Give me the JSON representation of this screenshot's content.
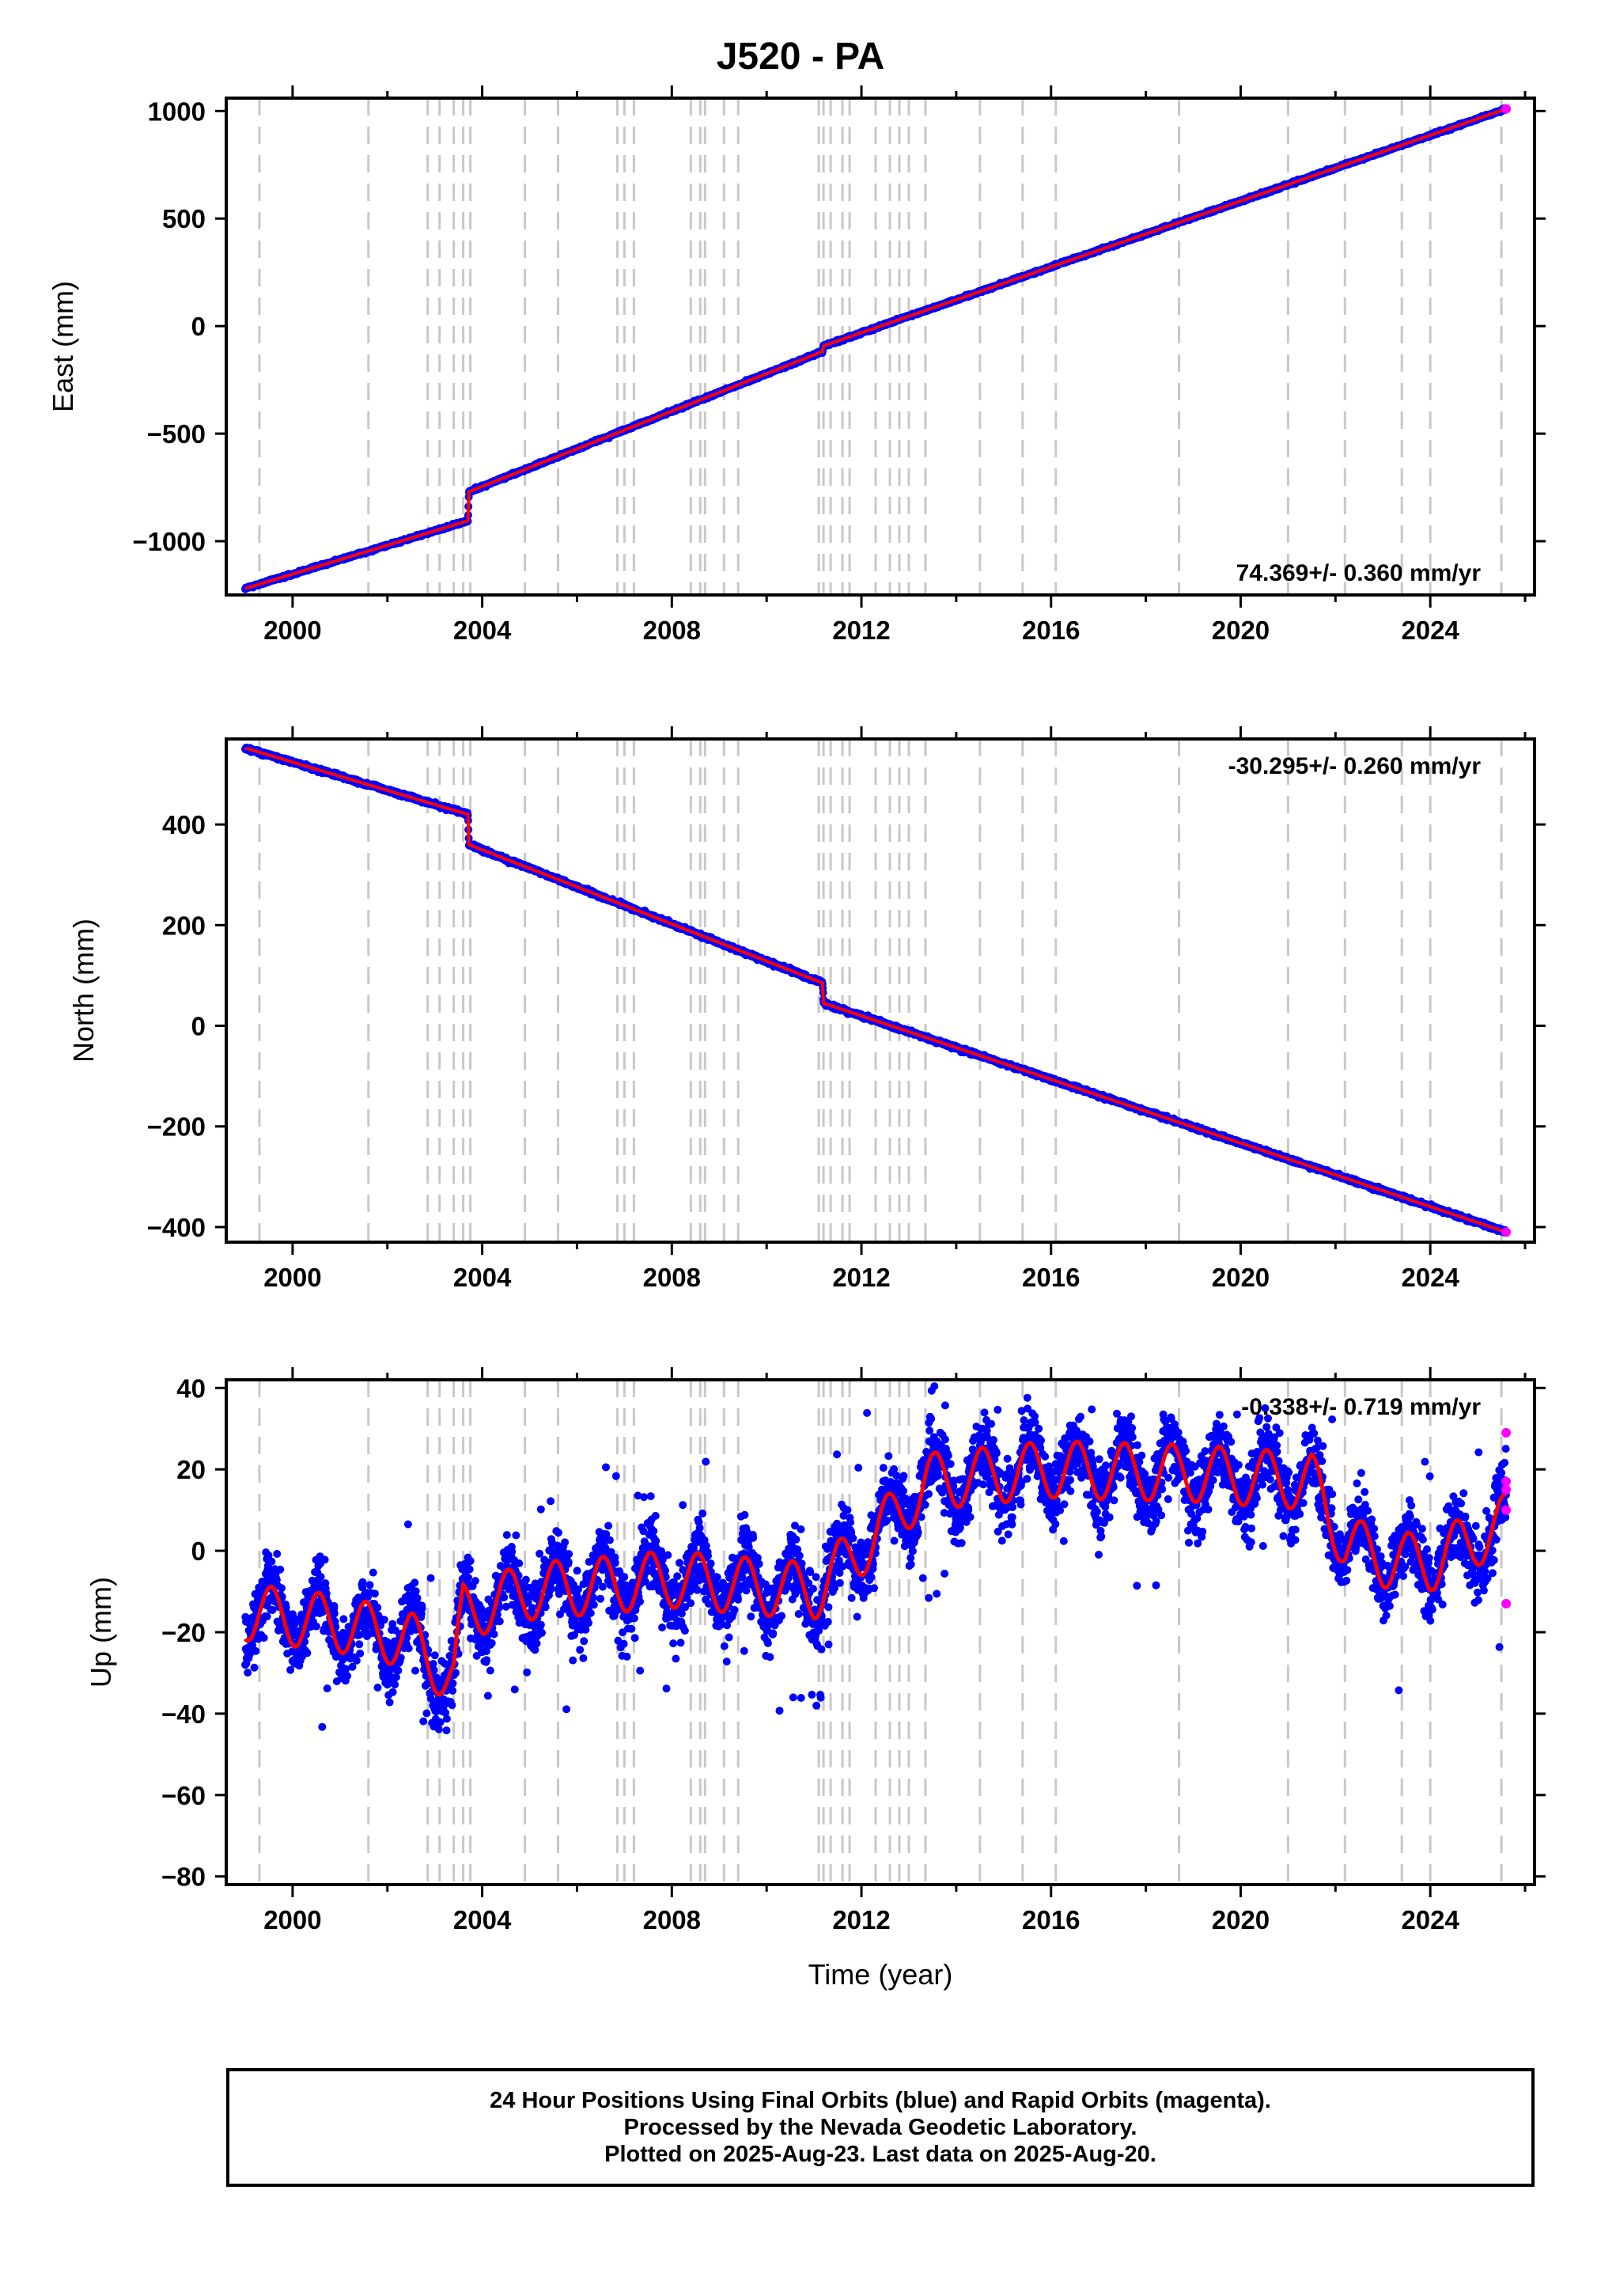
{
  "title": "J520 - PA",
  "x_label": "Time (year)",
  "x_ticks": [
    2000,
    2004,
    2008,
    2012,
    2016,
    2020,
    2024
  ],
  "x_range": [
    1998.6,
    2026.2
  ],
  "colors": {
    "final_points": "#0000ff",
    "rapid_points": "#ff00ff",
    "model_line": "#ff0000",
    "event_lines": "#c8c8c8",
    "axes": "#000000"
  },
  "caption": {
    "line1": "24 Hour Positions Using Final Orbits (blue) and Rapid Orbits (magenta).",
    "line2": "Processed by the Nevada Geodetic Laboratory.",
    "line3": "Plotted on 2025-Aug-23. Last data on 2025-Aug-20."
  },
  "chart_data": [
    {
      "type": "scatter",
      "component": "east",
      "ylabel": "East (mm)",
      "ylim": [
        -1250,
        1060
      ],
      "yticks": [
        -1000,
        -500,
        0,
        500,
        1000
      ],
      "rate_label": "74.369+/- 0.360 mm/yr",
      "rate_position": "bottom-right",
      "steps": [
        {
          "year": 2003.7,
          "from": -905,
          "to": -770
        },
        {
          "year": 2011.2,
          "from": -118,
          "to": -92
        }
      ],
      "x": [
        1999.0,
        2003.7,
        2003.72,
        2011.18,
        2011.2,
        2025.6
      ],
      "y": [
        -1220,
        -905,
        -770,
        -118,
        -92,
        1010
      ],
      "event_years": [
        1999.3,
        2001.6,
        2002.85,
        2003.1,
        2003.4,
        2003.6,
        2003.75,
        2004.9,
        2005.6,
        2006.85,
        2007.0,
        2007.2,
        2008.4,
        2008.6,
        2008.7,
        2009.1,
        2009.4,
        2011.1,
        2011.2,
        2011.35,
        2011.6,
        2011.75,
        2012.3,
        2012.6,
        2012.8,
        2013.0,
        2013.35,
        2014.5,
        2015.4,
        2016.1,
        2018.7,
        2021.0,
        2022.2,
        2023.4,
        2024.0,
        2025.5
      ],
      "final_points_label": "blue",
      "rapid_points_label": "magenta"
    },
    {
      "type": "scatter",
      "component": "north",
      "ylabel": "North (mm)",
      "ylim": [
        -430,
        570
      ],
      "yticks": [
        -400,
        -200,
        0,
        200,
        400
      ],
      "rate_label": "-30.295+/- 0.260 mm/yr",
      "rate_position": "top-right",
      "steps": [
        {
          "year": 2003.7,
          "from": 420,
          "to": 360
        },
        {
          "year": 2011.2,
          "from": 85,
          "to": 45
        }
      ],
      "x": [
        1999.0,
        2003.7,
        2003.72,
        2011.18,
        2011.2,
        2025.6
      ],
      "y": [
        552,
        420,
        360,
        85,
        45,
        -410
      ],
      "event_years": [
        1999.3,
        2001.6,
        2002.85,
        2003.1,
        2003.4,
        2003.6,
        2003.75,
        2004.9,
        2005.6,
        2006.85,
        2007.0,
        2007.2,
        2008.4,
        2008.6,
        2008.7,
        2009.1,
        2009.4,
        2011.1,
        2011.2,
        2011.35,
        2011.6,
        2011.75,
        2012.3,
        2012.6,
        2012.8,
        2013.0,
        2013.35,
        2014.5,
        2015.4,
        2016.1,
        2018.7,
        2021.0,
        2022.2,
        2023.4,
        2024.0,
        2025.5
      ]
    },
    {
      "type": "scatter",
      "component": "up",
      "ylabel": "Up (mm)",
      "ylim": [
        -82,
        42
      ],
      "yticks": [
        -80,
        -60,
        -40,
        -20,
        0,
        20,
        40
      ],
      "rate_label": "-0.338+/- 0.719 mm/yr",
      "rate_position": "top-right",
      "seasonal_amplitude": 7,
      "scatter_sd": 6,
      "model_trend": {
        "x": [
          1999.0,
          2001.0,
          2002.5,
          2003.4,
          2003.6,
          2005.0,
          2008.0,
          2011.0,
          2011.2,
          2012.4,
          2013.4,
          2016.0,
          2019.0,
          2021.5,
          2022.2,
          2023.0,
          2024.0,
          2025.6
        ],
        "y": [
          -15,
          -18,
          -22,
          -32,
          -15,
          -10,
          -7,
          -10,
          -8,
          5,
          17,
          20,
          19,
          17,
          2,
          -2,
          -3,
          7
        ]
      },
      "rapid_points": [
        {
          "year": 2025.6,
          "value": 29
        },
        {
          "year": 2025.6,
          "value": 17
        },
        {
          "year": 2025.6,
          "value": 15
        },
        {
          "year": 2025.6,
          "value": 10
        },
        {
          "year": 2025.6,
          "value": -13
        }
      ],
      "event_years": [
        1999.3,
        2001.6,
        2002.85,
        2003.1,
        2003.4,
        2003.6,
        2003.75,
        2004.9,
        2005.6,
        2006.85,
        2007.0,
        2007.2,
        2008.4,
        2008.6,
        2008.7,
        2009.1,
        2009.4,
        2011.1,
        2011.2,
        2011.35,
        2011.6,
        2011.75,
        2012.3,
        2012.6,
        2012.8,
        2013.0,
        2013.35,
        2014.5,
        2015.4,
        2016.1,
        2018.7,
        2021.0,
        2022.2,
        2023.4,
        2024.0,
        2025.5
      ]
    }
  ]
}
